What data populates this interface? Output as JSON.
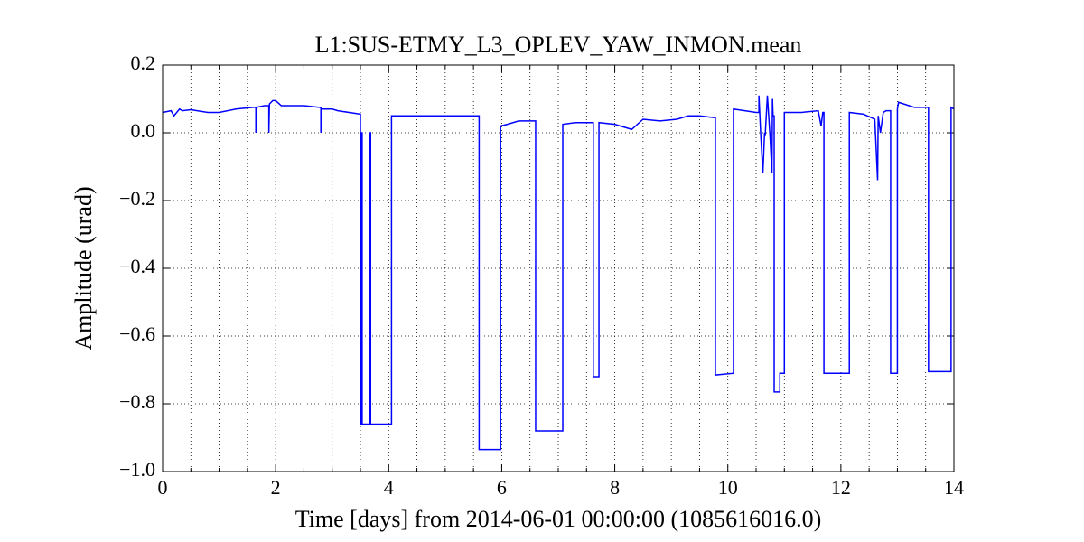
{
  "chart_data": {
    "type": "line",
    "title": "L1:SUS-ETMY_L3_OPLEV_YAW_INMON.mean",
    "x_label": "Time [days] from 2014-06-01 00:00:00 (1085616016.0)",
    "y_label": "Amplitude (urad)",
    "xlim": [
      0,
      14
    ],
    "ylim": [
      -1.0,
      0.2
    ],
    "xticks": [
      0,
      2,
      4,
      6,
      8,
      10,
      12,
      14
    ],
    "xminorticks": [
      0.5,
      1,
      1.5,
      2.5,
      3,
      3.5,
      4.5,
      5,
      5.5,
      6.5,
      7,
      7.5,
      8.5,
      9,
      9.5,
      10.5,
      11,
      11.5,
      12.5,
      13,
      13.5
    ],
    "yticks": [
      0.2,
      {
        "value": 0,
        "label": "0.0"
      },
      {
        "value": -0.2,
        "label": "−0.2"
      },
      {
        "value": -0.4,
        "label": "−0.4"
      },
      {
        "value": -0.6,
        "label": "−0.6"
      },
      {
        "value": -0.8,
        "label": "−0.8"
      },
      {
        "value": -1.0,
        "label": "−1.0"
      }
    ],
    "grid": true,
    "series": [
      {
        "name": "L1:SUS-ETMY_L3_OPLEV_YAW_INMON.mean",
        "color": "#0000ff",
        "x": [
          0,
          0.15,
          0.2,
          0.3,
          0.35,
          0.5,
          0.8,
          1.0,
          1.3,
          1.6,
          1.65,
          1.65,
          1.66,
          1.8,
          1.88,
          1.88,
          1.89,
          1.95,
          2.0,
          2.1,
          2.5,
          2.78,
          2.8,
          2.8,
          2.81,
          3.0,
          3.1,
          3.3,
          3.5,
          3.5,
          3.52,
          3.52,
          3.53,
          3.53,
          3.67,
          3.67,
          3.68,
          3.68,
          4.05,
          4.05,
          4.3,
          4.8,
          5.2,
          5.6,
          5.6,
          5.98,
          5.98,
          6.1,
          6.3,
          6.6,
          6.6,
          7.08,
          7.08,
          7.3,
          7.6,
          7.62,
          7.62,
          7.72,
          7.72,
          8.0,
          8.3,
          8.5,
          8.8,
          9.1,
          9.3,
          9.5,
          9.75,
          9.78,
          9.78,
          10.1,
          10.1,
          10.3,
          10.5,
          10.55,
          10.55,
          10.58,
          10.62,
          10.65,
          10.66,
          10.7,
          10.75,
          10.78,
          10.79,
          10.8,
          10.82,
          10.82,
          10.92,
          10.92,
          11.0,
          11.0,
          11.3,
          11.6,
          11.65,
          11.68,
          11.7,
          11.7,
          12.15,
          12.15,
          12.4,
          12.6,
          12.65,
          12.66,
          12.7,
          12.75,
          12.8,
          12.88,
          12.88,
          13.0,
          13.0,
          13.02,
          13.3,
          13.55,
          13.55,
          13.95,
          13.95,
          14.0
        ],
        "values": [
          0.06,
          0.065,
          0.05,
          0.07,
          0.065,
          0.068,
          0.06,
          0.06,
          0.07,
          0.075,
          0.075,
          0.0,
          0.075,
          0.08,
          0.08,
          0.0,
          0.085,
          0.095,
          0.095,
          0.08,
          0.08,
          0.075,
          0.075,
          0.0,
          0.07,
          0.07,
          0.065,
          0.06,
          0.055,
          -0.86,
          -0.86,
          0.0,
          0.0,
          -0.86,
          -0.86,
          0.0,
          0.0,
          -0.86,
          -0.86,
          0.05,
          0.05,
          0.05,
          0.05,
          0.05,
          -0.935,
          -0.935,
          0.02,
          0.025,
          0.035,
          0.035,
          -0.88,
          -0.88,
          0.025,
          0.03,
          0.03,
          0.03,
          -0.72,
          -0.72,
          0.03,
          0.025,
          0.01,
          0.04,
          0.035,
          0.04,
          0.05,
          0.05,
          0.045,
          0.045,
          -0.715,
          -0.71,
          0.07,
          0.065,
          0.06,
          0.06,
          0.11,
          0.0,
          -0.12,
          0.0,
          -0.01,
          0.11,
          -0.02,
          -0.12,
          0.1,
          0.05,
          0.05,
          -0.765,
          -0.765,
          -0.71,
          -0.71,
          0.06,
          0.06,
          0.065,
          0.02,
          0.06,
          0.06,
          -0.71,
          -0.71,
          0.06,
          0.055,
          0.04,
          -0.14,
          0.05,
          0.0,
          0.06,
          0.065,
          0.065,
          -0.71,
          -0.71,
          0.07,
          0.09,
          0.075,
          0.075,
          -0.705,
          -0.705,
          0.075,
          0.07
        ]
      }
    ]
  }
}
